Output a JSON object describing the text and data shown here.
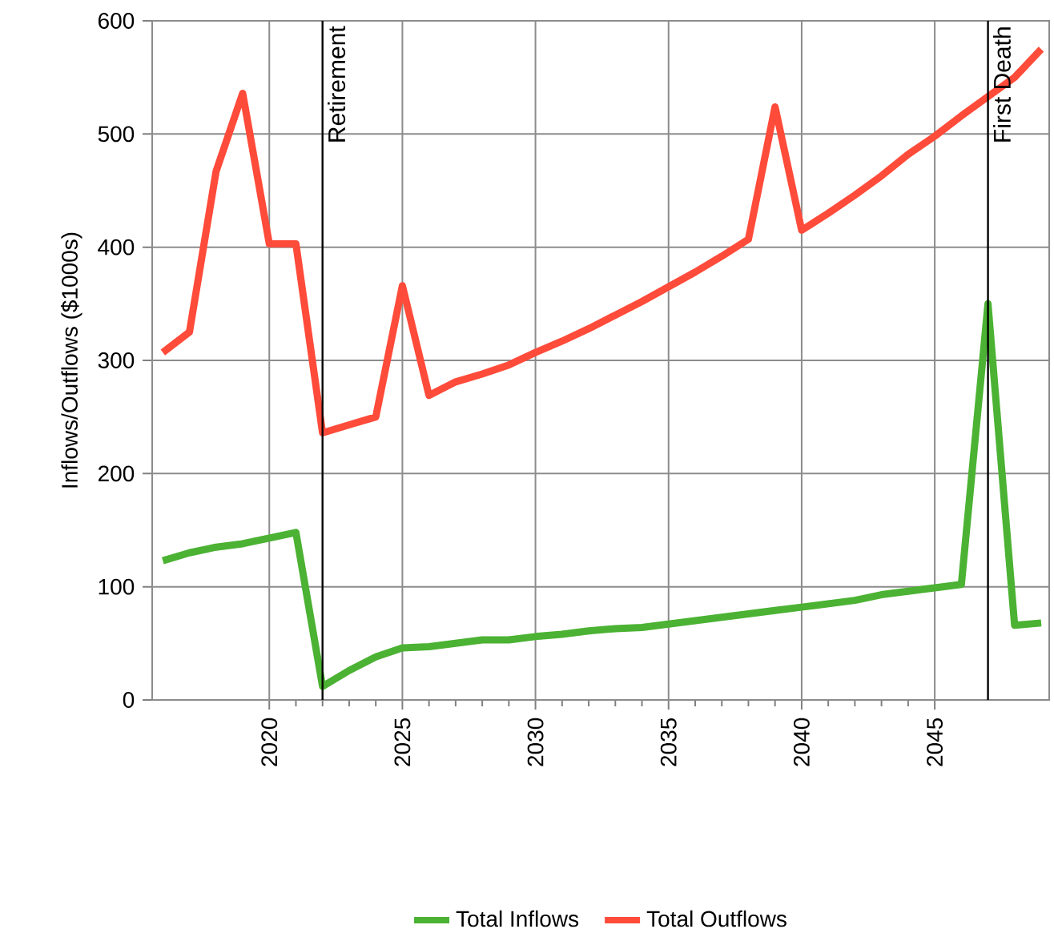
{
  "chart_data": {
    "type": "line",
    "ylabel": "Inflows/Outflows ($1000s)",
    "x": [
      2016,
      2017,
      2018,
      2019,
      2020,
      2021,
      2022,
      2023,
      2024,
      2025,
      2026,
      2027,
      2028,
      2029,
      2030,
      2031,
      2032,
      2033,
      2034,
      2035,
      2036,
      2037,
      2038,
      2039,
      2040,
      2041,
      2042,
      2043,
      2044,
      2045,
      2046,
      2047,
      2048,
      2049
    ],
    "series": [
      {
        "name": "Total Inflows",
        "color": "#4bb233",
        "values": [
          123,
          130,
          135,
          138,
          143,
          148,
          12,
          26,
          38,
          46,
          47,
          50,
          53,
          53,
          56,
          58,
          61,
          63,
          64,
          67,
          70,
          73,
          76,
          79,
          82,
          85,
          88,
          93,
          96,
          99,
          102,
          350,
          66,
          68
        ]
      },
      {
        "name": "Total Outflows",
        "color": "#ff4b3a",
        "values": [
          307,
          325,
          467,
          536,
          403,
          403,
          236,
          243,
          250,
          366,
          269,
          281,
          288,
          296,
          307,
          317,
          328,
          340,
          352,
          365,
          378,
          392,
          407,
          524,
          415,
          430,
          446,
          463,
          482,
          498,
          516,
          533,
          550,
          575
        ]
      }
    ],
    "xlim": [
      2015.6,
      2049.3
    ],
    "ylim": [
      0,
      600
    ],
    "xticks": [
      2020,
      2025,
      2030,
      2035,
      2040,
      2045
    ],
    "yticks": [
      0,
      100,
      200,
      300,
      400,
      500,
      600
    ],
    "ref_lines": [
      {
        "axis": "x",
        "value": 2022,
        "label": "Retirement",
        "color": "#000000"
      },
      {
        "axis": "x",
        "value": 2047,
        "label": "First Death",
        "color": "#000000"
      }
    ],
    "grid": true,
    "legend": "bottom",
    "marker": "none",
    "line_style": "solid"
  }
}
